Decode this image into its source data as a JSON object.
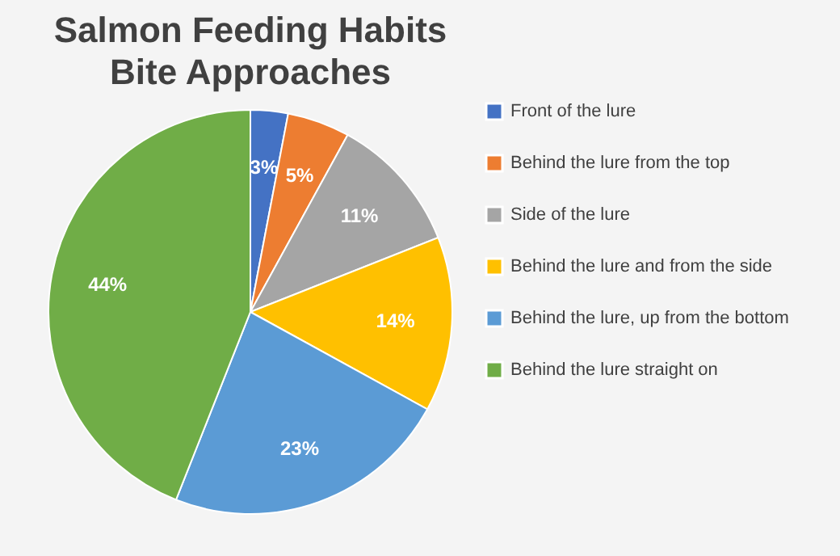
{
  "chart_data": {
    "type": "pie",
    "title": "Salmon Feeding Habits",
    "subtitle": "Bite Approaches",
    "categories": [
      "Front of the lure",
      "Behind the lure from the top",
      "Side of the lure",
      "Behind the lure and from the side",
      "Behind the lure, up from the bottom",
      "Behind the lure straight on"
    ],
    "values": [
      3,
      5,
      11,
      14,
      23,
      44
    ],
    "colors": [
      "#4472c4",
      "#ed7d31",
      "#a5a5a5",
      "#ffc000",
      "#5b9bd5",
      "#70ad47"
    ],
    "value_labels": [
      "3%",
      "5%",
      "11%",
      "14%",
      "23%",
      "44%"
    ],
    "legend": "right"
  }
}
